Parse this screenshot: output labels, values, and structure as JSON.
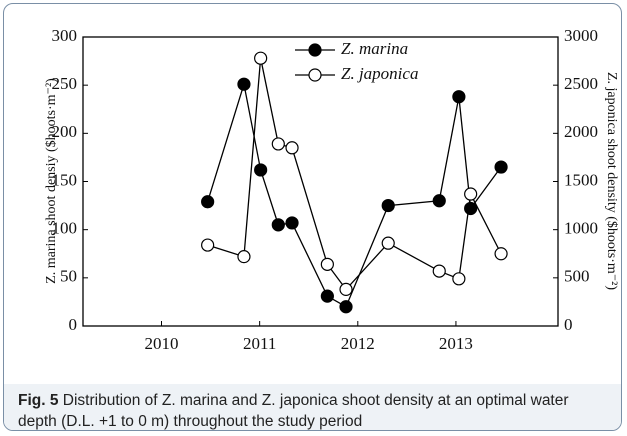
{
  "chart_data": {
    "type": "line",
    "y_label": "Z. marina shoot densiy ($hoots·m⁻²)",
    "y2_label": "Z. japonica shoot density ($hoots·m⁻²)",
    "caption_label": "Fig. 5",
    "caption": "Distribution of Z. marina and Z. japonica shoot density at an optimal water depth (D.L. +1 to 0 m) throughout the study period",
    "x": [
      2010.47,
      2010.84,
      2011.01,
      2011.19,
      2011.33,
      2011.69,
      2011.88,
      2012.31,
      2012.83,
      2013.03,
      2013.15,
      2013.46
    ],
    "series": [
      {
        "name": "Z. marina",
        "color": "#000000",
        "marker": "filled",
        "values": [
          129,
          251,
          162,
          105,
          107,
          31,
          20,
          125,
          130,
          238,
          122,
          165
        ]
      },
      {
        "name": "Z. japonica",
        "color": "#000000",
        "marker": "open",
        "axis": "y2",
        "values": [
          840,
          720,
          2780,
          1890,
          1850,
          640,
          380,
          860,
          570,
          490,
          1370,
          750
        ]
      }
    ],
    "xlim": [
      2009.2,
      2014.04
    ],
    "xticks": [
      2010,
      2011,
      2012,
      2013
    ],
    "ylim": [
      0,
      300
    ],
    "yticks": [
      0,
      50,
      100,
      150,
      200,
      250,
      300
    ],
    "y2lim": [
      0,
      3000
    ],
    "y2ticks": [
      0,
      500,
      1000,
      1500,
      2000,
      2500,
      3000
    ],
    "legend": "upper center",
    "grid": false
  }
}
